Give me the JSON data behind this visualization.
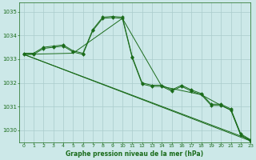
{
  "title": "Graphe pression niveau de la mer (hPa)",
  "bg_color": "#cce8e8",
  "grid_color": "#aacccc",
  "line_color": "#1a6b1a",
  "xlim": [
    -0.5,
    23
  ],
  "ylim": [
    1029.5,
    1035.4
  ],
  "yticks": [
    1030,
    1031,
    1032,
    1033,
    1034,
    1035
  ],
  "xticks": [
    0,
    1,
    2,
    3,
    4,
    5,
    6,
    7,
    8,
    9,
    10,
    11,
    12,
    13,
    14,
    15,
    16,
    17,
    18,
    19,
    20,
    21,
    22,
    23
  ],
  "line1_x": [
    0,
    1,
    2,
    3,
    4,
    5,
    6,
    7,
    8,
    9,
    10,
    11,
    12,
    13,
    14,
    15,
    16,
    17,
    18,
    19,
    20,
    21,
    22,
    23
  ],
  "line1_y": [
    1033.2,
    1033.2,
    1033.45,
    1033.5,
    1033.55,
    1033.3,
    1033.2,
    1034.2,
    1034.72,
    1034.75,
    1034.72,
    1033.05,
    1031.95,
    1031.85,
    1031.85,
    1031.65,
    1031.85,
    1031.65,
    1031.5,
    1031.05,
    1031.05,
    1030.85,
    1029.8,
    1029.55
  ],
  "line2_x": [
    0,
    1,
    2,
    3,
    4,
    5,
    6,
    7,
    8,
    9,
    10,
    11,
    12,
    13,
    14,
    15,
    16,
    17,
    18,
    19,
    20,
    21,
    22,
    23
  ],
  "line2_y": [
    1033.2,
    1033.2,
    1033.45,
    1033.5,
    1033.55,
    1033.3,
    1033.2,
    1034.2,
    1034.72,
    1034.75,
    1034.72,
    1033.05,
    1031.95,
    1031.85,
    1031.85,
    1031.65,
    1031.85,
    1031.65,
    1031.5,
    1031.05,
    1031.05,
    1030.85,
    1029.8,
    1029.55
  ],
  "line3_x": [
    0,
    23
  ],
  "line3_y": [
    1033.2,
    1029.55
  ],
  "line4_x": [
    0,
    23
  ],
  "line4_y": [
    1033.2,
    1029.6
  ],
  "line5_x": [
    0,
    5,
    10,
    14,
    18,
    20,
    21,
    22,
    23
  ],
  "line5_y": [
    1033.2,
    1033.25,
    1034.72,
    1031.85,
    1031.5,
    1031.05,
    1030.85,
    1029.8,
    1029.55
  ]
}
